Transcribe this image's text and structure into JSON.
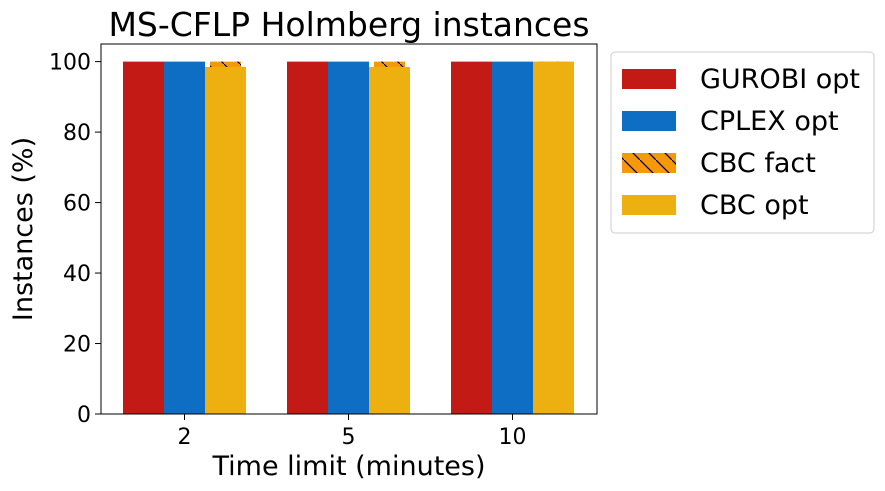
{
  "chart_data": {
    "type": "bar",
    "title": "MS-CFLP Holmberg instances",
    "xlabel": "Time limit (minutes)",
    "ylabel": "Instances (%)",
    "categories": [
      "2",
      "5",
      "10"
    ],
    "ylim": [
      0,
      105
    ],
    "yticks": [
      0,
      20,
      40,
      60,
      80,
      100
    ],
    "grid": false,
    "legend_position": "outside-right",
    "series": [
      {
        "name": "GUROBI opt",
        "values": [
          100,
          100,
          100
        ],
        "color": "#c41a16",
        "hatch": false,
        "offset": 0
      },
      {
        "name": "CPLEX opt",
        "values": [
          100,
          100,
          100
        ],
        "color": "#0d6ec4",
        "hatch": false,
        "offset": 1
      },
      {
        "name": "CBC fact",
        "values": [
          100,
          100,
          100
        ],
        "color": "#f5990a",
        "hatch": true,
        "offset": 2,
        "narrow": true
      },
      {
        "name": "CBC opt",
        "values": [
          98.5,
          98.5,
          100
        ],
        "color": "#eeb010",
        "hatch": false,
        "offset": 2
      }
    ]
  }
}
